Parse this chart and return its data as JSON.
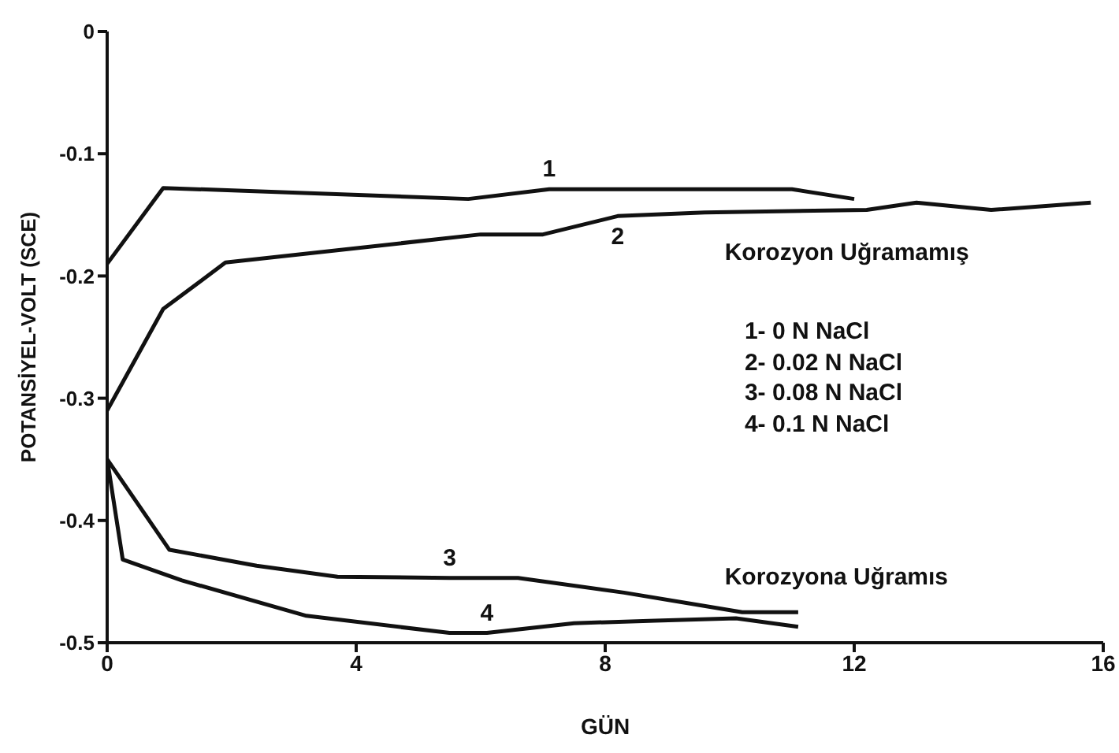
{
  "chart_data": {
    "type": "line",
    "xlabel": "GÜN",
    "ylabel": "POTANSİYEL-VOLT (SCE)",
    "xlim": [
      0,
      16
    ],
    "xticks": [
      0,
      4,
      8,
      12,
      16
    ],
    "ylim": [
      -0.5,
      0
    ],
    "yticks": [
      -0.5,
      -0.4,
      -0.3,
      -0.2,
      -0.1,
      0
    ],
    "grid": false,
    "legend": false,
    "marker": "none",
    "line_style": "solid",
    "series": [
      {
        "name": "1",
        "color": "#111111",
        "x": [
          0,
          0.9,
          5.8,
          7.1,
          11,
          12
        ],
        "values": [
          -0.19,
          -0.128,
          -0.137,
          -0.129,
          -0.129,
          -0.137
        ]
      },
      {
        "name": "2",
        "color": "#111111",
        "x": [
          0,
          0.9,
          1.9,
          6,
          7,
          8.2,
          9.6,
          12.2,
          13,
          14.2,
          15.8
        ],
        "values": [
          -0.31,
          -0.227,
          -0.189,
          -0.166,
          -0.166,
          -0.151,
          -0.148,
          -0.146,
          -0.14,
          -0.146,
          -0.14
        ]
      },
      {
        "name": "3",
        "color": "#111111",
        "x": [
          0,
          1,
          2.4,
          3.7,
          5.5,
          6.6,
          8.3,
          10.2,
          11.1
        ],
        "values": [
          -0.35,
          -0.424,
          -0.437,
          -0.446,
          -0.447,
          -0.447,
          -0.459,
          -0.475,
          -0.475
        ]
      },
      {
        "name": "4",
        "color": "#111111",
        "x": [
          0,
          0.25,
          1.2,
          3.2,
          5.5,
          6.1,
          7.5,
          8.8,
          10.1,
          11.1
        ],
        "values": [
          -0.35,
          -0.432,
          -0.449,
          -0.478,
          -0.492,
          -0.492,
          -0.484,
          -0.482,
          -0.48,
          -0.487
        ]
      }
    ],
    "annotations": [
      "Korozyon Uğramamış",
      "1- 0 N NaCl",
      "2- 0.02 N NaCl",
      "3- 0.08 N NaCl",
      "4- 0.1 N NaCl",
      "Korozyona Uğramıs"
    ]
  }
}
